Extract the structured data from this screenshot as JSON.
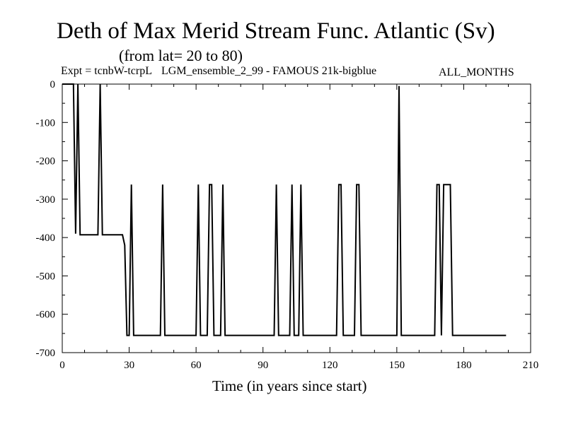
{
  "header": {
    "title": "Deth of Max Merid Stream Func. Atlantic (Sv)",
    "subtitle": "(from lat= 20 to 80)",
    "expt": "Expt = tcnbW-tcrpL",
    "run_info": "LGM_ensemble_2_99 - FAMOUS 21k-bigblue",
    "months": "ALL_MONTHS"
  },
  "chart_data": {
    "type": "line",
    "title": "Deth of Max Merid Stream Func. Atlantic (Sv)",
    "xlabel": "Time (in years since start)",
    "ylabel": "",
    "xlim": [
      0,
      210
    ],
    "ylim": [
      -700,
      0
    ],
    "xticks": [
      0,
      30,
      60,
      90,
      120,
      150,
      180,
      210
    ],
    "yticks": [
      0,
      -100,
      -200,
      -300,
      -400,
      -500,
      -600,
      -700
    ],
    "grid": false,
    "series": [
      {
        "name": "",
        "x": [
          0,
          5,
          6,
          7,
          8,
          9,
          10,
          16,
          17,
          18,
          27,
          28,
          29,
          30,
          31,
          32,
          44,
          45,
          46,
          60,
          61,
          62,
          65,
          66,
          67,
          68,
          71,
          72,
          73,
          95,
          96,
          97,
          102,
          103,
          104,
          106,
          107,
          108,
          123,
          124,
          125,
          126,
          131,
          132,
          133,
          134,
          150,
          151,
          152,
          167,
          168,
          169,
          170,
          171,
          172,
          174,
          175,
          199
        ],
        "y": [
          0,
          0,
          -390,
          0,
          -393,
          -393,
          -393,
          -393,
          0,
          -393,
          -393,
          -420,
          -655,
          -655,
          -262,
          -655,
          -655,
          -262,
          -655,
          -655,
          -262,
          -655,
          -655,
          -262,
          -262,
          -655,
          -655,
          -262,
          -655,
          -655,
          -262,
          -655,
          -655,
          -262,
          -655,
          -655,
          -262,
          -655,
          -655,
          -262,
          -262,
          -655,
          -655,
          -262,
          -262,
          -655,
          -655,
          -5,
          -655,
          -655,
          -262,
          -262,
          -655,
          -262,
          -262,
          -262,
          -655,
          -655
        ]
      }
    ]
  }
}
